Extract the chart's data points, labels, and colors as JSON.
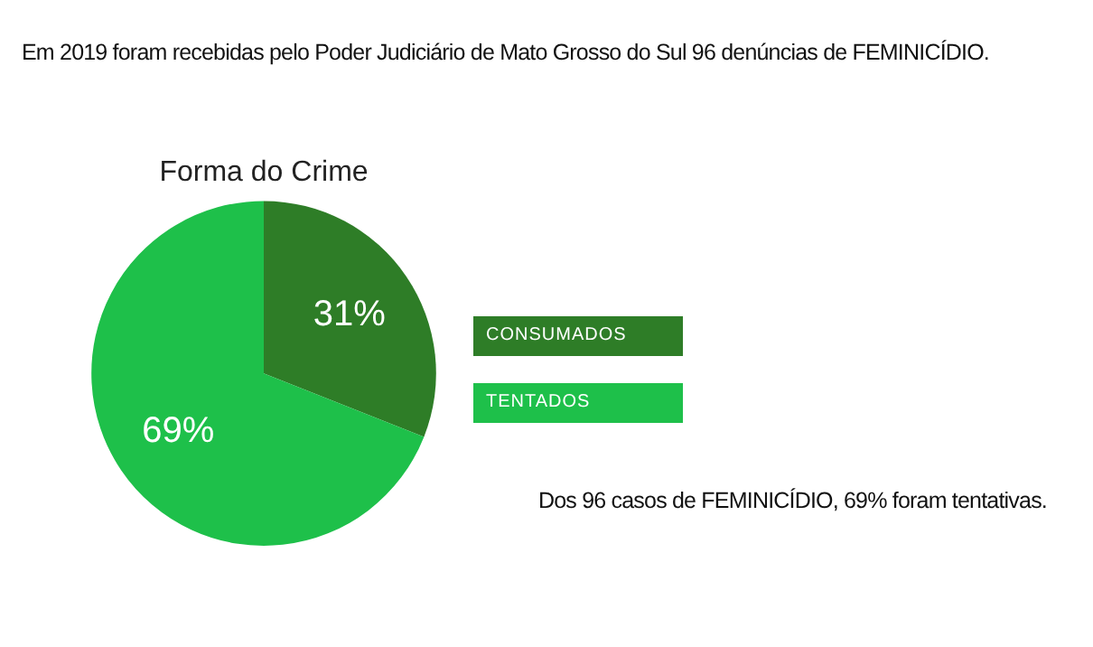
{
  "chart_data": {
    "type": "pie",
    "subtitle": "Em 2019 foram recebidas pelo Poder Judiciário de Mato Grosso do Sul 96 denúncias de FEMINICÍDIO.",
    "title": "Forma do Crime",
    "categories": [
      "CONSUMADOS",
      "TENTADOS"
    ],
    "values": [
      31,
      69
    ],
    "colors": [
      "#2e7d27",
      "#1ec04a"
    ],
    "value_labels": [
      "31%",
      "69%"
    ],
    "legend": "right",
    "annotations": [
      "Dos 96 casos de FEMINICÍDIO, 69% foram tentativas."
    ]
  }
}
